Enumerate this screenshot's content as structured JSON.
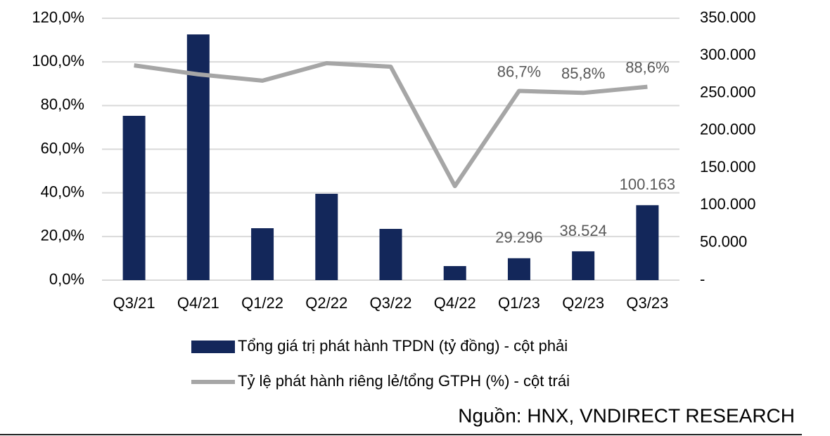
{
  "chart_data": {
    "type": "bar",
    "categories": [
      "Q3/21",
      "Q4/21",
      "Q1/22",
      "Q2/22",
      "Q3/22",
      "Q4/22",
      "Q1/23",
      "Q2/23",
      "Q3/23"
    ],
    "series": [
      {
        "name": "Tổng giá trị phát hành TPDN (tỷ đồng) - cột phải",
        "type": "bar",
        "axis": "y2",
        "color": "#13275a",
        "values": [
          219600,
          328400,
          69400,
          115400,
          68500,
          18800,
          29296,
          38524,
          100163
        ],
        "value_labels": [
          null,
          null,
          null,
          null,
          null,
          null,
          "29.296",
          "38.524",
          "100.163"
        ]
      },
      {
        "name": "Tỷ lệ phát hành riêng lẻ/tổng GTPH (%) - cột trái",
        "type": "line",
        "color": "#a6a6a6",
        "values": [
          98.4,
          94.3,
          91.4,
          99.4,
          97.8,
          43.1,
          86.7,
          85.8,
          88.6
        ],
        "value_labels": [
          null,
          null,
          null,
          null,
          null,
          null,
          "86,7%",
          "85,8%",
          "88,6%"
        ]
      }
    ],
    "ylim": [
      0,
      120
    ],
    "yticks": [
      {
        "value": 0,
        "label": "0,0%"
      },
      {
        "value": 20,
        "label": "20,0%"
      },
      {
        "value": 40,
        "label": "40,0%"
      },
      {
        "value": 60,
        "label": "60,0%"
      },
      {
        "value": 80,
        "label": "80,0%"
      },
      {
        "value": 100,
        "label": "100,0%"
      },
      {
        "value": 120,
        "label": "120,0%"
      }
    ],
    "y2lim": [
      0,
      350000
    ],
    "y2ticks": [
      {
        "value": 0,
        "label": "-"
      },
      {
        "value": 50000,
        "label": "50.000"
      },
      {
        "value": 100000,
        "label": "100.000"
      },
      {
        "value": 150000,
        "label": "150.000"
      },
      {
        "value": 200000,
        "label": "200.000"
      },
      {
        "value": 250000,
        "label": "250.000"
      },
      {
        "value": 300000,
        "label": "300.000"
      },
      {
        "value": 350000,
        "label": "350.000"
      }
    ],
    "grid": true,
    "legend": "bottom",
    "source": "Nguồn: HNX, VNDIRECT RESEARCH"
  }
}
